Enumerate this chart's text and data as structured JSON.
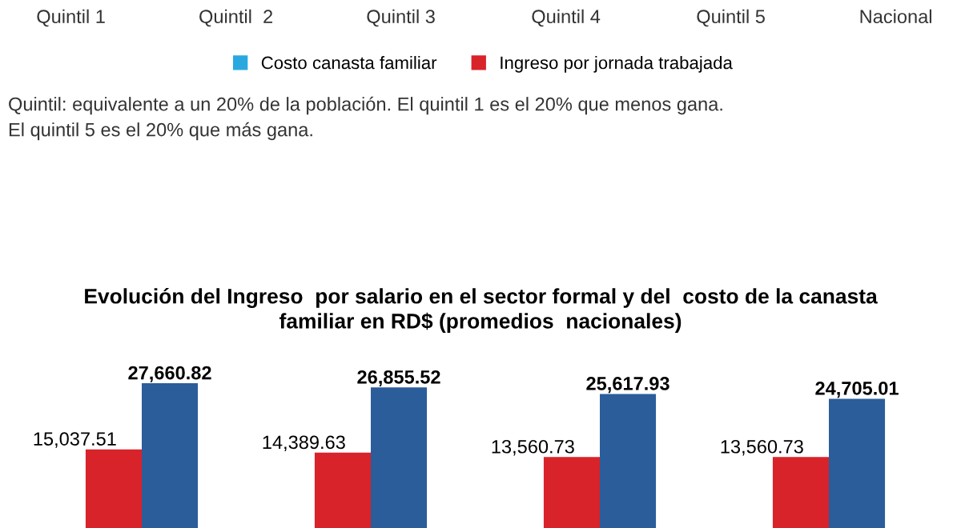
{
  "chart_data": [
    {
      "type": "other",
      "categories": [
        "Quintil 1",
        "Quintil  2",
        "Quintil 3",
        "Quintil 4",
        "Quintil 5",
        "Nacional"
      ],
      "series": [
        {
          "name": "Costo canasta familiar",
          "color": "#29a8e0",
          "values": [
            null,
            null,
            null,
            null,
            null,
            null
          ]
        },
        {
          "name": "Ingreso por jornada trabajada",
          "color": "#d9232a",
          "values": [
            null,
            null,
            null,
            null,
            null,
            null
          ]
        }
      ],
      "legend": "bottom",
      "annotations": [
        "Quintil: equivalente a un 20% de la población. El quintil 1 es el 20% que menos gana.",
        "El quintil 5 es el 20% que más gana."
      ]
    },
    {
      "type": "bar",
      "title": "Evolución del Ingreso  por salario en el sector formal y del  costo de la canasta\nfamiliar en RD$ (promedios  nacionales)",
      "categories": [
        null,
        null,
        null,
        null
      ],
      "series": [
        {
          "color": "#d9232a",
          "values": [
            15037.51,
            14389.63,
            13560.73,
            13560.73
          ],
          "value_labels": [
            "15,037.51",
            "14,389.63",
            "13,560.73",
            "13,560.73"
          ]
        },
        {
          "color": "#2b5d9b",
          "values": [
            27660.82,
            26855.52,
            25617.93,
            24705.01
          ],
          "value_labels": [
            "27,660.82",
            "26,855.52",
            "25,617.93",
            "24,705.01"
          ]
        }
      ]
    }
  ]
}
